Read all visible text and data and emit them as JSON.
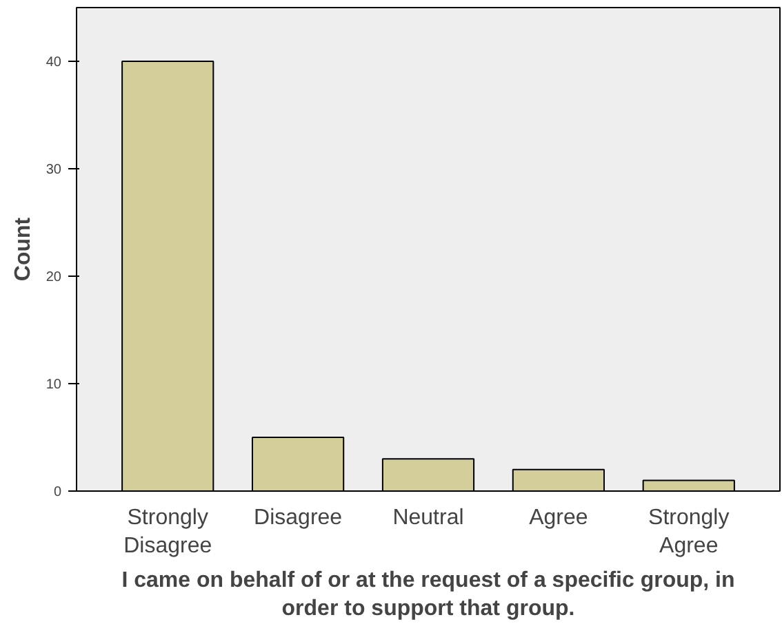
{
  "chart_data": {
    "type": "bar",
    "categories": [
      "Strongly\nDisagree",
      "Disagree",
      "Neutral",
      "Agree",
      "Strongly\nAgree"
    ],
    "values": [
      40,
      5,
      3,
      2,
      1
    ],
    "color": "#d3ce9a",
    "xlabel": "I came on behalf of or at the request of a specific group, in\norder to support that group.",
    "ylabel": "Count",
    "ylim": [
      0,
      45
    ],
    "yticks": [
      0,
      10,
      20,
      30,
      40
    ],
    "grid": false
  }
}
